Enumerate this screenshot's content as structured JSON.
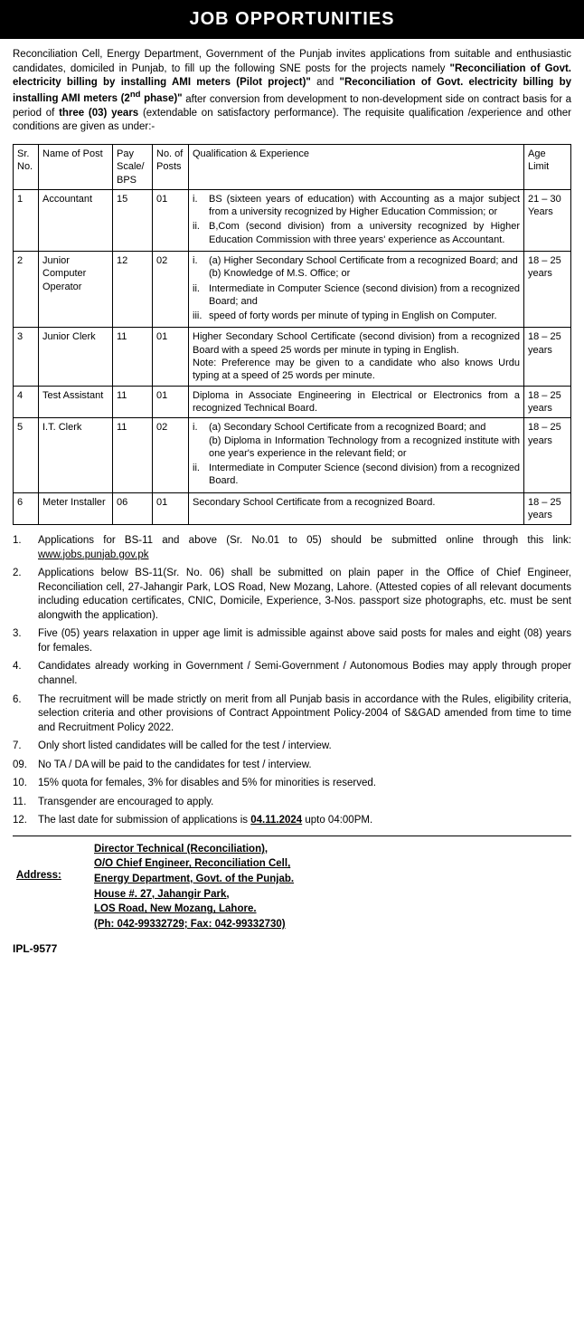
{
  "header": "JOB OPPORTUNITIES",
  "intro": {
    "p1a": "Reconciliation Cell, Energy Department, Government of the Punjab invites applications from suitable and enthusiastic candidates, domiciled in Punjab, to fill up the following SNE posts for the projects namely ",
    "b1": "\"Reconciliation of Govt. electricity billing by installing AMI meters (Pilot project)\"",
    "p1b": " and ",
    "b2": "\"Reconciliation of Govt. electricity billing by installing AMI meters (2",
    "b2sup": "nd",
    "b2b": " phase)\"",
    "p1c": " after conversion from development to non-development side on contract basis for a period of ",
    "b3": "three (03) years",
    "p1d": " (extendable on satisfactory performance). The requisite qualification /experience and other conditions are given as under:-"
  },
  "table": {
    "headers": {
      "sr": "Sr. No.",
      "name": "Name of Post",
      "pay": "Pay Scale/ BPS",
      "num": "No. of Posts",
      "qual": "Qualification & Experience",
      "age": "Age Limit"
    },
    "rows": [
      {
        "sr": "1",
        "name": "Accountant",
        "pay": "15",
        "num": "01",
        "qual_items": [
          "BS (sixteen years of education) with Accounting as a major subject from a university recognized by Higher Education Commission; or",
          "B,Com (second division) from a university recognized by Higher Education Commission with three years' experience as Accountant."
        ],
        "age": "21 – 30 Years"
      },
      {
        "sr": "2",
        "name": "Junior Computer Operator",
        "pay": "12",
        "num": "02",
        "qual_items": [
          "(a) Higher Secondary School Certificate from a recognized Board; and\n(b) Knowledge of M.S. Office; or",
          "Intermediate in Computer Science (second division) from a recognized Board; and",
          "speed of forty words per minute of typing in English on Computer."
        ],
        "age": "18 – 25 years"
      },
      {
        "sr": "3",
        "name": "Junior Clerk",
        "pay": "11",
        "num": "01",
        "qual_plain": "Higher Secondary School Certificate (second division) from a recognized Board with a speed 25 words per minute in typing in English.\nNote: Preference may be given to a candidate who also knows Urdu typing at a speed of 25 words per minute.",
        "age": "18 – 25 years"
      },
      {
        "sr": "4",
        "name": "Test Assistant",
        "pay": "11",
        "num": "01",
        "qual_plain": "Diploma in Associate Engineering in Electrical or Electronics from a recognized Technical Board.",
        "age": "18 – 25 years"
      },
      {
        "sr": "5",
        "name": "I.T. Clerk",
        "pay": "11",
        "num": "02",
        "qual_items": [
          "(a) Secondary School Certificate from a recognized Board; and\n(b) Diploma in Information Technology from a recognized institute with one year's experience in the relevant field; or",
          "Intermediate in Computer Science (second division) from a recognized Board."
        ],
        "age": "18 – 25 years"
      },
      {
        "sr": "6",
        "name": "Meter Installer",
        "pay": "06",
        "num": "01",
        "qual_plain": "Secondary School Certificate from a recognized Board.",
        "age": "18 – 25 years"
      }
    ]
  },
  "notes": [
    {
      "n": "1.",
      "pre": "Applications for BS-11 and above (Sr. No.01 to 05) should be submitted online through this link: ",
      "link": "www.jobs.punjab.gov.pk"
    },
    {
      "n": "2.",
      "t": "Applications below BS-11(Sr. No. 06) shall be submitted on plain paper in the Office of Chief Engineer, Reconciliation cell, 27-Jahangir Park, LOS Road, New Mozang, Lahore. (Attested copies of all relevant documents including education certificates, CNIC, Domicile, Experience, 3-Nos. passport size photographs, etc. must be sent alongwith the application)."
    },
    {
      "n": "3.",
      "t": "Five (05) years relaxation in upper age limit is admissible against above said posts for males and eight (08) years for females."
    },
    {
      "n": "4.",
      "t": "Candidates already working in Government / Semi-Government / Autonomous Bodies may apply through proper channel."
    },
    {
      "n": "6.",
      "t": "The recruitment will be made strictly on merit from all Punjab basis in accordance with the Rules, eligibility criteria, selection criteria and other provisions of Contract Appointment Policy-2004 of S&GAD amended from time to time and Recruitment Policy 2022."
    },
    {
      "n": "7.",
      "t": "Only short listed candidates will be called for the test / interview."
    },
    {
      "n": "09.",
      "t": "No TA / DA will be paid to the candidates for test / interview."
    },
    {
      "n": "10.",
      "t": "15% quota for females, 3% for disables and 5% for minorities is reserved."
    },
    {
      "n": "11.",
      "t": "Transgender are encouraged to apply."
    },
    {
      "n": "12.",
      "pre": "The last date for submission of applications is ",
      "deadline": "04.11.2024",
      "post": " upto 04:00PM."
    }
  ],
  "footer": {
    "addressLabel": "Address:",
    "lines": [
      "Director Technical (Reconciliation),",
      "O/O Chief Engineer, Reconciliation Cell,",
      "Energy Department, Govt. of the Punjab.",
      "House #. 27, Jahangir Park,",
      "LOS Road, New Mozang, Lahore.",
      "(Ph: 042-99332729; Fax: 042-99332730)"
    ]
  },
  "ipl": "IPL-9577"
}
